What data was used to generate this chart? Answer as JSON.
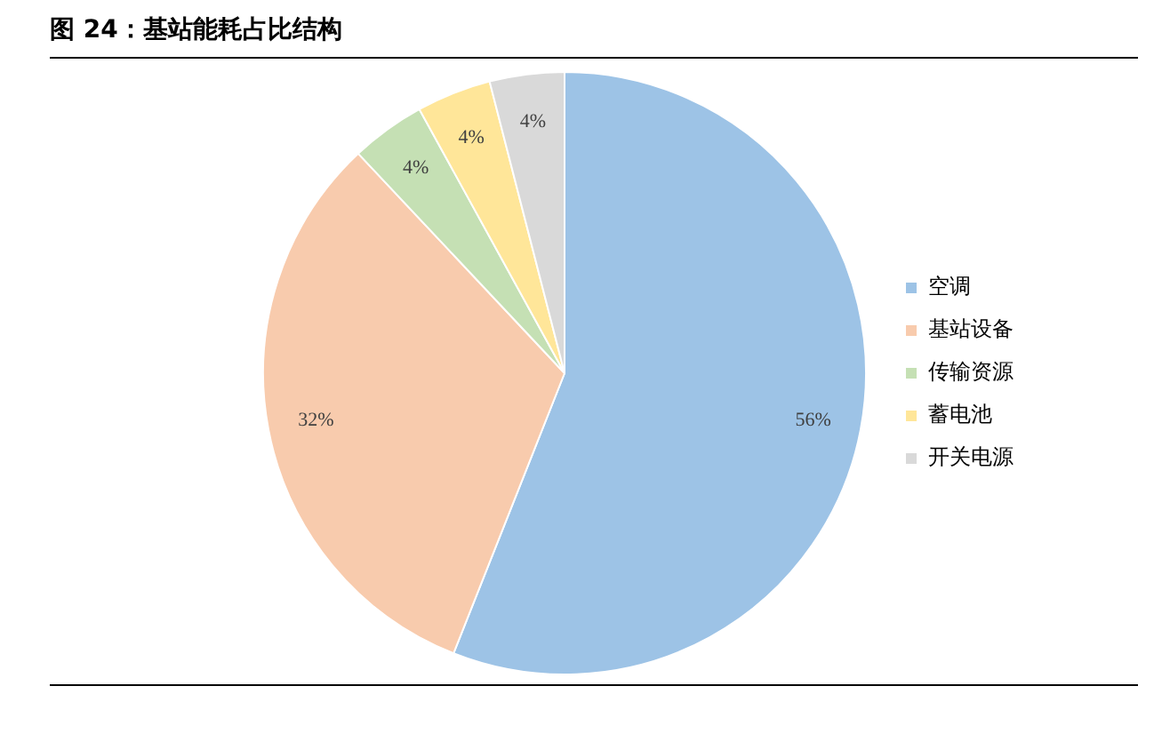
{
  "chart_data": {
    "type": "pie",
    "title": "图 24：基站能耗占比结构",
    "categories": [
      "空调",
      "基站设备",
      "传输资源",
      "蓄电池",
      "开关电源"
    ],
    "values": [
      56,
      32,
      4,
      4,
      4
    ],
    "colors": [
      "#9dc3e6",
      "#f8cbad",
      "#c5e0b4",
      "#ffe699",
      "#d9d9d9"
    ],
    "value_labels": [
      "56%",
      "32%",
      "4%",
      "4%",
      "4%"
    ],
    "legend": "right"
  }
}
